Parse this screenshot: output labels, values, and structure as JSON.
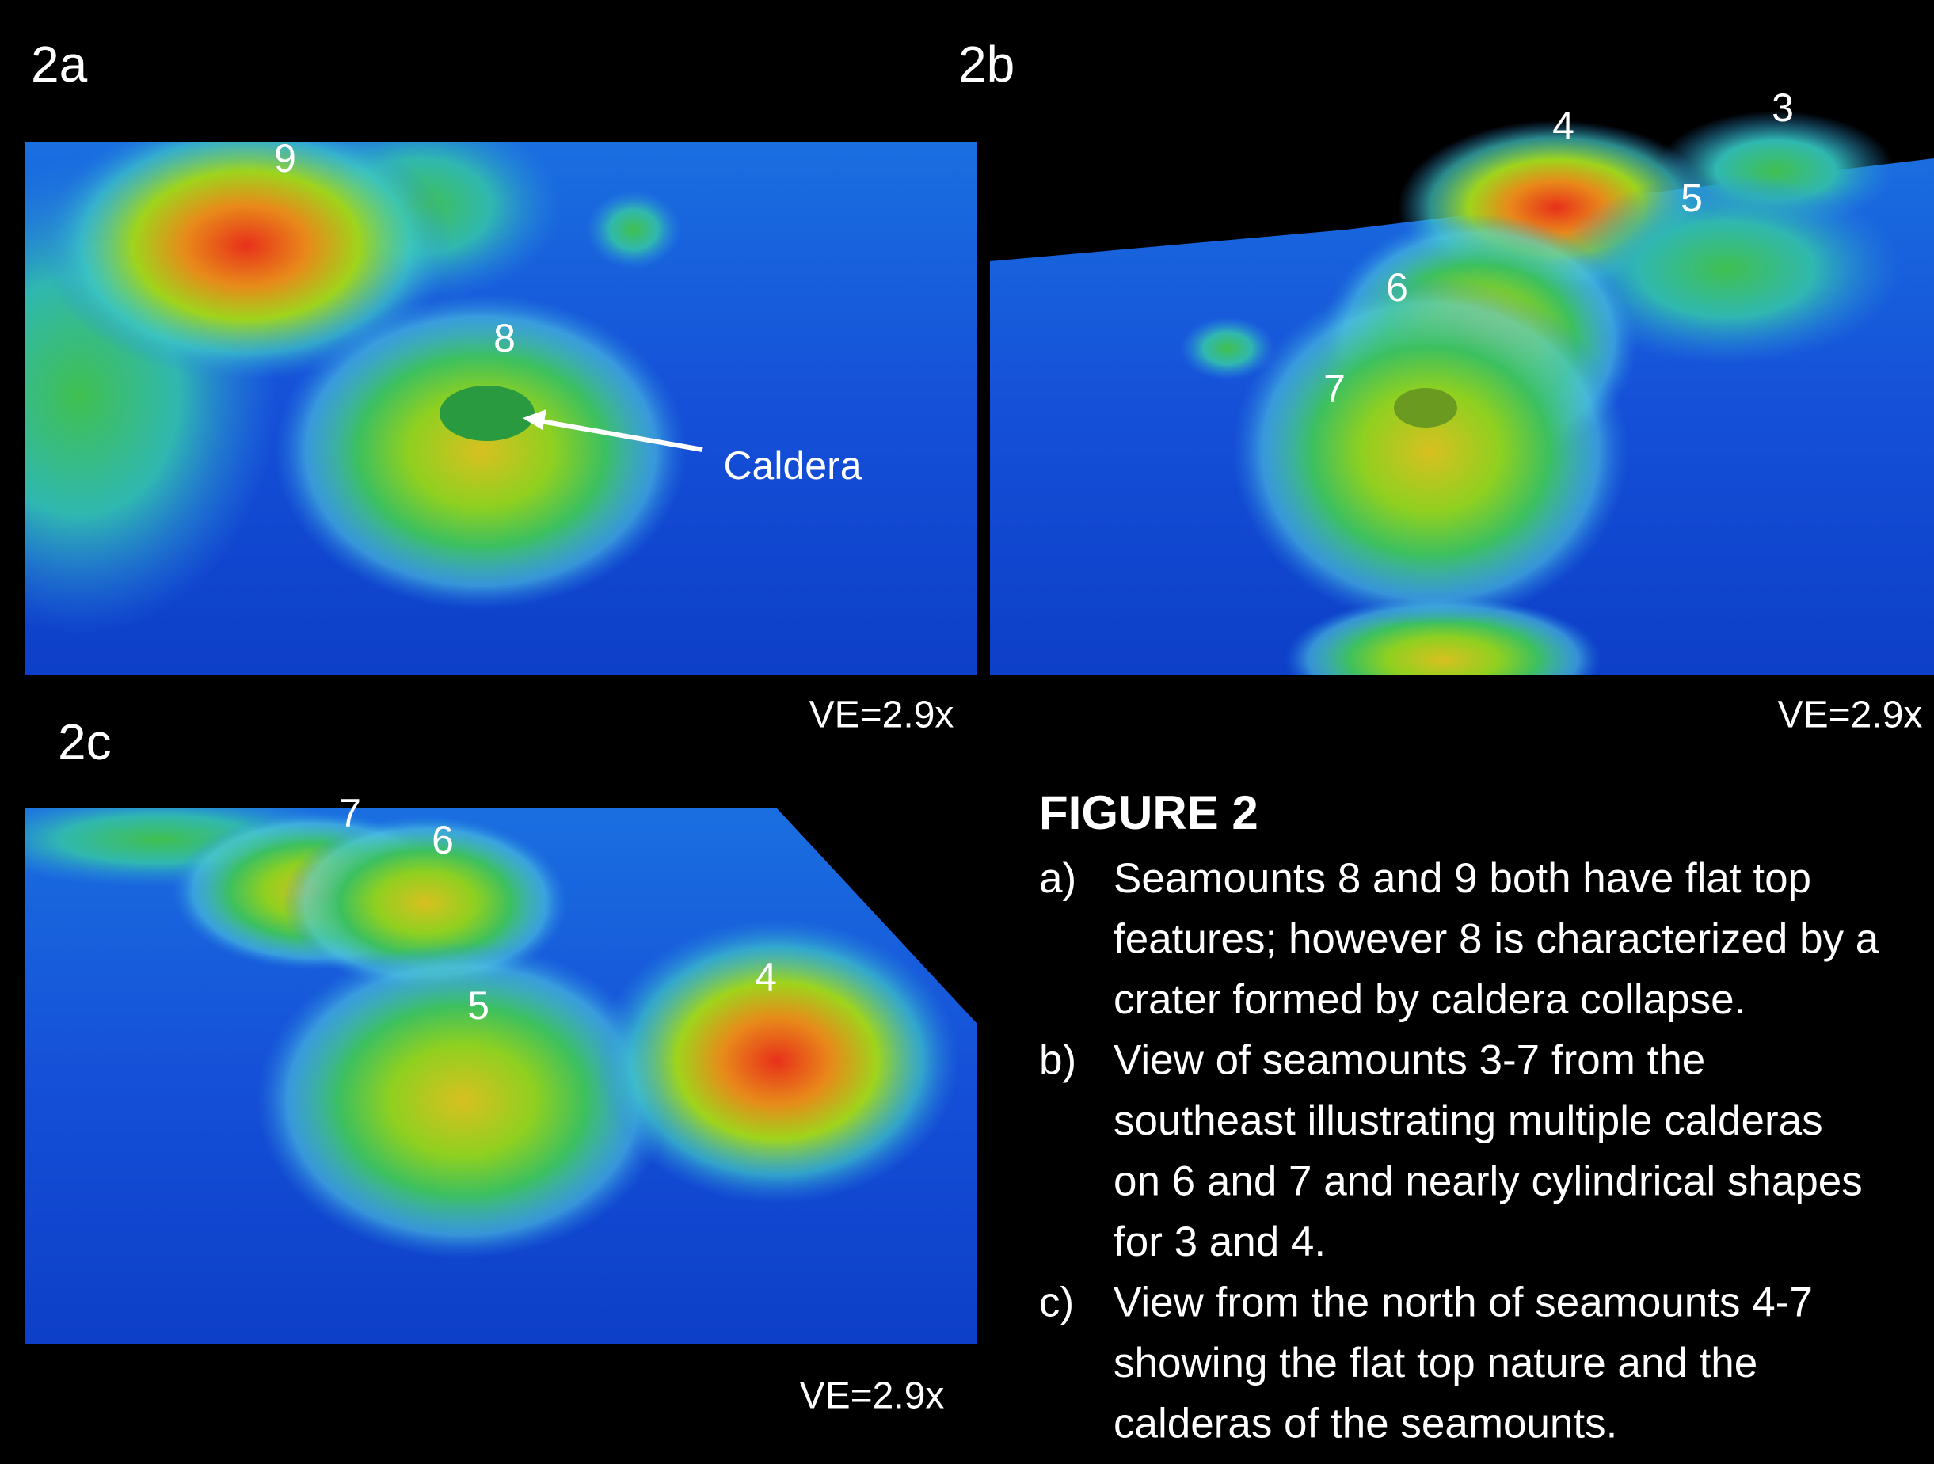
{
  "panels": [
    {
      "label": "2a",
      "ve": "VE=2.9x",
      "markers": [
        "9",
        "8"
      ],
      "annotation": "Caldera"
    },
    {
      "label": "2b",
      "ve": "VE=2.9x",
      "markers": [
        "4",
        "3",
        "5",
        "6",
        "7"
      ]
    },
    {
      "label": "2c",
      "ve": "VE=2.9x",
      "markers": [
        "7",
        "6",
        "5",
        "4"
      ]
    }
  ],
  "caption": {
    "title": "FIGURE 2",
    "items": [
      {
        "marker": "a)",
        "lines": [
          "Seamounts 8 and 9 both have flat top",
          "features; however 8 is characterized by a",
          "crater formed by caldera collapse."
        ]
      },
      {
        "marker": "b)",
        "lines": [
          "View of seamounts 3-7 from the",
          "southeast illustrating multiple calderas",
          "on 6 and 7 and nearly cylindrical shapes",
          "for 3 and 4."
        ]
      },
      {
        "marker": "c)",
        "lines": [
          "View from the north of seamounts 4-7",
          "showing the flat top nature and the",
          "calderas of the seamounts."
        ]
      }
    ]
  }
}
